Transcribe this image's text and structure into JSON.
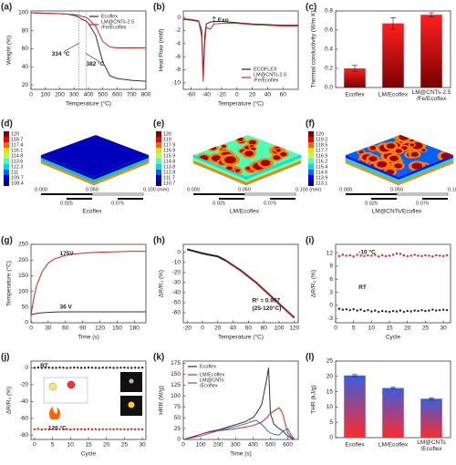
{
  "chart_data": [
    {
      "type": "line",
      "label": "(a)",
      "xlabel": "Temperature (°C)",
      "ylabel": "Weight (%)",
      "x": [
        0,
        100,
        200,
        250,
        300,
        334,
        350,
        382,
        400,
        450,
        500,
        550,
        600,
        700,
        800
      ],
      "series": [
        {
          "name": "Ecoflex",
          "color": "#333333",
          "values": [
            100,
            99.5,
            99,
            98.5,
            97,
            95,
            93,
            91,
            88,
            75,
            45,
            30,
            27,
            25,
            24
          ]
        },
        {
          "name": "LM@CNTs-2.5/Fe/Ecoflex",
          "color": "#e02020",
          "values": [
            100,
            99.5,
            99,
            98.5,
            98,
            97,
            96,
            95,
            93,
            85,
            68,
            62,
            61,
            61,
            61
          ]
        }
      ],
      "annotations": [
        {
          "text": "334 °C",
          "x": 334
        },
        {
          "text": "382 °C",
          "x": 382
        }
      ],
      "xlim": [
        0,
        800
      ],
      "xticks": [
        0,
        100,
        200,
        300,
        400,
        500,
        600,
        700,
        800
      ],
      "ylim": [
        15,
        102
      ],
      "yticks": [
        20,
        40,
        60,
        80,
        100
      ],
      "legend": "top-right"
    },
    {
      "type": "line",
      "label": "(b)",
      "xlabel": "Temperature (°C)",
      "ylabel": "Heat Flow (mW)",
      "x": [
        -70,
        -60,
        -50,
        -46,
        -44,
        -42,
        -40,
        -35,
        -30,
        -20,
        -10,
        0,
        10,
        20,
        40,
        60,
        80
      ],
      "series": [
        {
          "name": "ECOFLEX",
          "color": "#222222",
          "values": [
            -0.3,
            -0.4,
            -0.6,
            -2,
            -8.8,
            -3,
            -1,
            -0.7,
            -0.6,
            -0.6,
            -0.7,
            -0.8,
            -0.9,
            -1.0,
            -1.1,
            -1.2,
            -1.2
          ]
        },
        {
          "name": "LM@CNTs-2.5/Fe/Ecoflex",
          "color": "#e02020",
          "values": [
            -0.2,
            -0.3,
            -0.5,
            -3,
            -9.8,
            -4,
            -1.5,
            -1.8,
            -1,
            -0.9,
            -0.9,
            -0.9,
            -1,
            -1.1,
            -1.2,
            -1.3,
            -1.3
          ]
        }
      ],
      "annotations": [
        {
          "text": "Exo"
        }
      ],
      "xlim": [
        -70,
        80
      ],
      "xticks": [
        -60,
        -40,
        -20,
        0,
        20,
        40,
        60
      ],
      "ylim": [
        -11,
        1
      ],
      "yticks": [
        -10,
        -8,
        -6,
        -4,
        -2,
        0
      ],
      "legend": "bottom-right"
    },
    {
      "type": "bar",
      "label": "(c)",
      "ylabel": "Thermal conductivity (W/m K)",
      "categories": [
        "Ecoflex",
        "LM/Ecoflex",
        "LM@CNTs-2.5/Fe/Ecoflex"
      ],
      "values": [
        0.2,
        0.67,
        0.76
      ],
      "errors": [
        0.03,
        0.06,
        0.02
      ],
      "colors": [
        "#ff2020",
        "#7a0000"
      ],
      "ylim": [
        0,
        0.8
      ],
      "yticks": [
        {
          "value": 0,
          "label": "0.0"
        },
        {
          "value": 0.2,
          "label": "0.2"
        },
        {
          "value": 0.4,
          "label": "0.4"
        },
        {
          "value": 0.6,
          "label": "0.6"
        },
        {
          "value": 0.8,
          "label": "0.8"
        }
      ]
    },
    {
      "type": "simulation",
      "label": "(d)",
      "caption": "Ecoflex",
      "colorbar_labels": [
        "120",
        "118.7",
        "117.4",
        "116.1",
        "114.8",
        "113.6",
        "112.3",
        "111",
        "109.7",
        "108.4"
      ],
      "scale_labels": [
        "0.000",
        "0.025",
        "0.050",
        "0.075",
        "0.100 (mm)"
      ]
    },
    {
      "type": "simulation",
      "label": "(e)",
      "caption": "LM/Ecoflex",
      "colorbar_labels": [
        "120",
        "119",
        "117.9",
        "116.9",
        "115.9",
        "114.8",
        "113.8",
        "112.8",
        "111.7",
        "110.7"
      ],
      "scale_labels": [
        "0.000",
        "0.025",
        "0.050",
        "0.075",
        "0.100 (mm)"
      ]
    },
    {
      "type": "simulation",
      "label": "(f)",
      "caption": "LM@CNTs/Ecoflex",
      "colorbar_labels": [
        "120",
        "119.2",
        "118.5",
        "117.7",
        "116.9",
        "116.2",
        "115.4",
        "114.6",
        "113.9",
        "113.1"
      ],
      "scale_labels": [
        "0.000",
        "0.025",
        "0.050",
        "0.075",
        "0.100 (mm)"
      ]
    },
    {
      "type": "line",
      "label": "(g)",
      "xlabel": "Time (s)",
      "ylabel": "Temperature (°C)",
      "x": [
        0,
        5,
        10,
        20,
        30,
        40,
        60,
        80,
        100,
        120,
        140,
        160,
        180,
        200
      ],
      "series": [
        {
          "name": "175V",
          "color": "#e02020",
          "values": [
            25,
            80,
            120,
            165,
            190,
            203,
            215,
            220,
            223,
            225,
            226,
            227,
            228,
            228
          ]
        },
        {
          "name": "36 V",
          "color": "#333333",
          "values": [
            25,
            28,
            30,
            32,
            33,
            34,
            35,
            35,
            35,
            35,
            35,
            35,
            35,
            35
          ]
        }
      ],
      "xlim": [
        0,
        200
      ],
      "xticks": [
        0,
        30,
        60,
        90,
        120,
        150,
        180
      ],
      "ylim": [
        0,
        250
      ],
      "yticks": [
        0,
        50,
        100,
        150,
        200,
        250
      ],
      "legend": "inline"
    },
    {
      "type": "line",
      "label": "(h)",
      "xlabel": "Temperature (°C)",
      "ylabel": "ΔR/R₀ (%)",
      "x": [
        -20,
        -10,
        0,
        10,
        20,
        30,
        40,
        50,
        60,
        70,
        80,
        90,
        100,
        110,
        120
      ],
      "series": [
        {
          "color": "#222222",
          "values": [
            3,
            1,
            -1,
            -2.5,
            -4,
            -8,
            -13,
            -18,
            -24,
            -30,
            -37,
            -44,
            -51,
            -58,
            -65
          ]
        },
        {
          "color": "#e02020",
          "values": [
            null,
            null,
            null,
            null,
            null,
            -8.2,
            -13.4,
            -18.6,
            -23.8,
            -29.9,
            -36.9,
            -43.9,
            -50.9,
            -57.9,
            -64.9
          ]
        }
      ],
      "annotations": [
        {
          "text": "R² = 0.997"
        },
        {
          "text": "(25-120°C)"
        }
      ],
      "xlim": [
        -25,
        125
      ],
      "xticks": [
        -20,
        0,
        20,
        40,
        60,
        80,
        100,
        120
      ],
      "ylim": [
        -70,
        8
      ],
      "yticks": [
        -60,
        -50,
        -40,
        -30,
        -20,
        -10,
        0
      ]
    },
    {
      "type": "scatter",
      "label": "(i)",
      "xlabel": "Cycle",
      "ylabel": "ΔR/R₀ (%)",
      "x": [
        1,
        2,
        3,
        4,
        5,
        6,
        7,
        8,
        9,
        10,
        11,
        12,
        13,
        14,
        15,
        16,
        17,
        18,
        19,
        20,
        21,
        22,
        23,
        24,
        25,
        26,
        27,
        28,
        29,
        30,
        31
      ],
      "series": [
        {
          "name": "-10 °C",
          "color": "#e02020",
          "values": [
            11.3,
            11.6,
            11.4,
            11.5,
            11.2,
            11.6,
            11.4,
            11.3,
            11.5,
            11.4,
            11.6,
            11.2,
            11.5,
            11.3,
            11.4,
            11.6,
            11.9,
            11.8,
            11.5,
            11.3,
            11.4,
            11.6,
            11.4,
            11.3,
            11.5,
            11.4,
            11.2,
            11.5,
            11.4,
            11.3,
            11.5
          ]
        },
        {
          "name": "RT",
          "color": "#222222",
          "values": [
            -0.8,
            -1.0,
            -0.9,
            -1.1,
            -0.9,
            -1.2,
            -1.0,
            -1.3,
            -1.1,
            -1.4,
            -1.2,
            -1.5,
            -1.3,
            -1.4,
            -1.5,
            -1.3,
            -1.4,
            -1.2,
            -1.5,
            -1.3,
            -1.4,
            -1.2,
            -1.3,
            -1.1,
            -1.3,
            -1.2,
            -1.0,
            -1.2,
            -1.1,
            -1.0,
            -1.1
          ]
        }
      ],
      "xlim": [
        0,
        32
      ],
      "xticks": [
        0,
        5,
        10,
        15,
        20,
        25,
        30
      ],
      "ylim": [
        -4,
        14
      ],
      "yticks": [
        -3,
        0,
        3,
        6,
        9,
        12
      ],
      "legend": "inline"
    },
    {
      "type": "scatter",
      "label": "(j)",
      "xlabel": "Cycle",
      "ylabel": "ΔR/R₀ (%)",
      "x": [
        0,
        1,
        2,
        3,
        4,
        5,
        6,
        7,
        8,
        9,
        10,
        11,
        12,
        13,
        14,
        15,
        16,
        17,
        18,
        19,
        20,
        21,
        22,
        23,
        24,
        25,
        26,
        27,
        28,
        29,
        30
      ],
      "series": [
        {
          "name": "RT",
          "color": "#222222",
          "values": [
            0,
            0.3,
            -0.2,
            0.1,
            0.2,
            -0.1,
            0,
            0.3,
            0.1,
            -0.2,
            0,
            0.2,
            0.1,
            -0.1,
            0,
            0.2,
            0.1,
            0,
            -0.2,
            0.1,
            0,
            0.2,
            -0.1,
            0,
            0.1,
            0.2,
            0,
            -0.1,
            0.1,
            0,
            0.2
          ]
        },
        {
          "name": "120 °C",
          "color": "#e02020",
          "values": [
            -73,
            -72.5,
            -73.2,
            -72.8,
            -73,
            -72.6,
            -73.1,
            -72.9,
            -73,
            -72.7,
            -73.2,
            -72.8,
            -73,
            -72.9,
            -73.1,
            -72.7,
            -73,
            -72.8,
            -73.2,
            -72.9,
            -73,
            -72.8,
            -73.1,
            -72.7,
            -73,
            -72.9,
            -73.1,
            -72.8,
            -73,
            -72.9,
            -73
          ]
        }
      ],
      "xlim": [
        -1,
        31
      ],
      "xticks": [
        0,
        5,
        10,
        15,
        20,
        25,
        30
      ],
      "ylim": [
        -85,
        8
      ],
      "yticks": [
        -80,
        -60,
        -40,
        -20,
        0
      ],
      "legend": "inline"
    },
    {
      "type": "line",
      "label": "(k)",
      "xlabel": "Time (s)",
      "ylabel": "HRR (W/g)",
      "x": [
        0,
        50,
        100,
        150,
        200,
        250,
        300,
        350,
        400,
        420,
        450,
        480,
        490,
        500,
        520,
        550,
        570,
        600,
        620,
        640
      ],
      "series": [
        {
          "name": "Ecoflex",
          "color": "#333333",
          "values": [
            0,
            5,
            12,
            18,
            22,
            28,
            34,
            40,
            50,
            60,
            80,
            140,
            165,
            60,
            35,
            25,
            20,
            8,
            3,
            0
          ]
        },
        {
          "name": "LM/Ecoflex",
          "color": "#e02020",
          "values": [
            0,
            6,
            12,
            17,
            20,
            22,
            25,
            28,
            32,
            35,
            40,
            50,
            55,
            60,
            65,
            73,
            60,
            15,
            5,
            0
          ]
        },
        {
          "name": "LM@CNTs/Ecoflex",
          "color": "#2f6fd6",
          "values": [
            0,
            4,
            8,
            14,
            20,
            25,
            30,
            35,
            42,
            44,
            35,
            22,
            18,
            15,
            12,
            10,
            18,
            25,
            10,
            0
          ]
        }
      ],
      "xlim": [
        0,
        660
      ],
      "xticks": [
        0,
        100,
        200,
        300,
        400,
        500,
        600
      ],
      "ylim": [
        0,
        180
      ],
      "yticks": [
        0,
        25,
        50,
        75,
        100,
        125,
        150,
        175
      ],
      "legend": "top-left"
    },
    {
      "type": "bar",
      "label": "(l)",
      "ylabel": "THR (kJ/g)",
      "categories": [
        "Ecoflex",
        "LM/Ecoflex",
        "LM@CNTs/Ecoflex"
      ],
      "values": [
        20.3,
        16.2,
        12.7
      ],
      "errors": [
        0.3,
        0.3,
        0.3
      ],
      "colors": [
        "#3a5ee0",
        "#ff2a2a"
      ],
      "ylim": [
        0,
        25
      ],
      "yticks": [
        0,
        5,
        10,
        15,
        20,
        25
      ]
    }
  ]
}
